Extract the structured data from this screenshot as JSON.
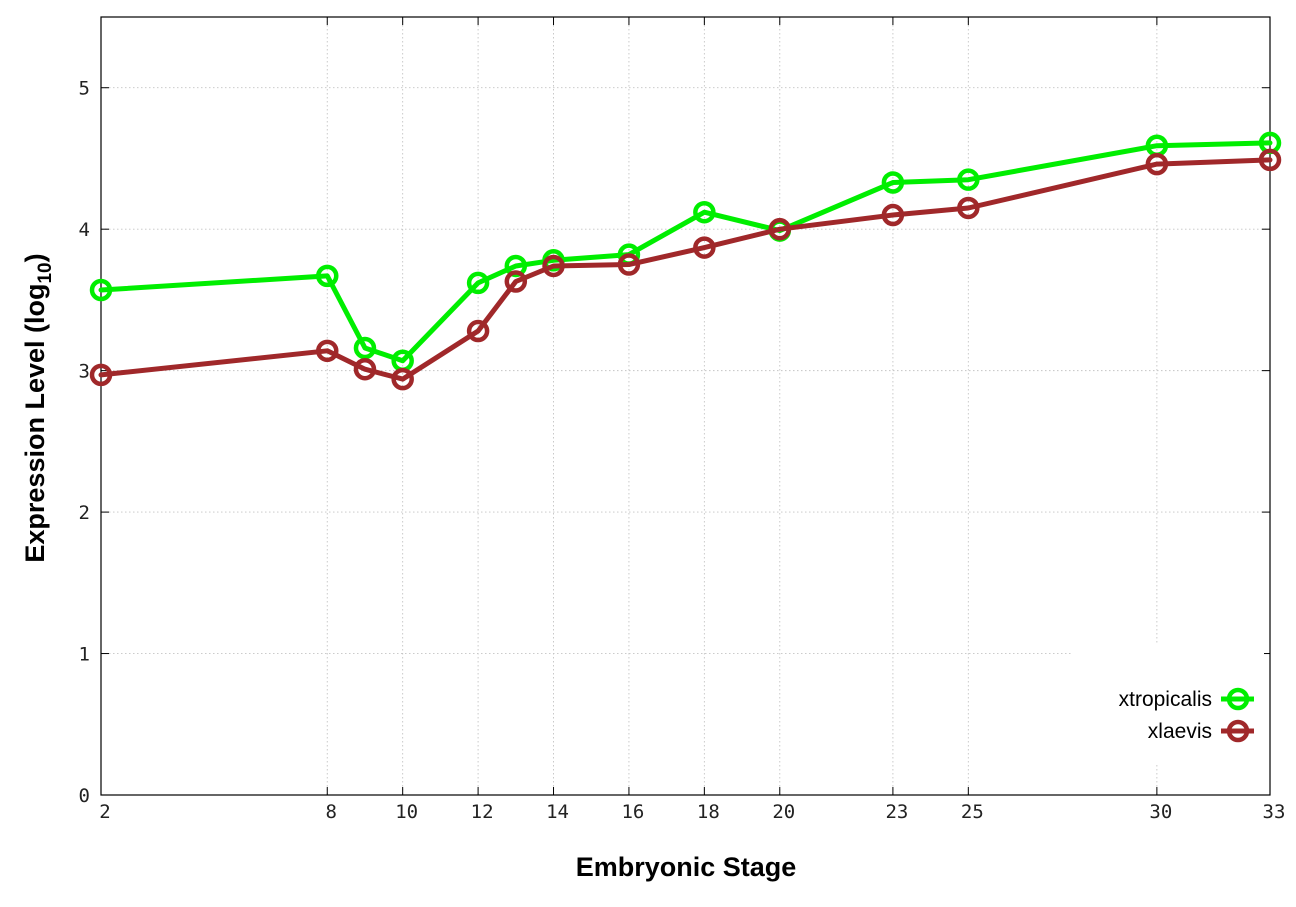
{
  "chart_data": {
    "type": "line",
    "xlabel": "Embryonic Stage",
    "ylabel": "Expression Level (log",
    "ylabel_subscript": "10",
    "ylabel_close": ")",
    "x": [
      2,
      8,
      9,
      10,
      12,
      13,
      14,
      16,
      18,
      20,
      23,
      25,
      30,
      33
    ],
    "xticks": [
      "2",
      "8",
      "10",
      "12",
      "14",
      "16",
      "18",
      "20",
      "23",
      "25",
      "30",
      "33"
    ],
    "xtick_values": [
      2,
      8,
      10,
      12,
      14,
      16,
      18,
      20,
      23,
      25,
      30,
      33
    ],
    "xlim": [
      2,
      33
    ],
    "yticks": [
      "0",
      "1",
      "2",
      "3",
      "4",
      "5"
    ],
    "ytick_values": [
      0,
      1,
      2,
      3,
      4,
      5
    ],
    "ylim": [
      0,
      5.5
    ],
    "grid": true,
    "legend_position": "bottom-right",
    "series": [
      {
        "name": "xtropicalis",
        "color": "#00ee00",
        "values": [
          3.57,
          3.67,
          3.16,
          3.07,
          3.62,
          3.74,
          3.78,
          3.82,
          4.12,
          3.99,
          4.33,
          4.35,
          4.59,
          4.61
        ]
      },
      {
        "name": "xlaevis",
        "color": "#a0282a",
        "values": [
          2.97,
          3.14,
          3.01,
          2.94,
          3.28,
          3.63,
          3.74,
          3.75,
          3.87,
          4.0,
          4.1,
          4.15,
          4.46,
          4.49
        ]
      }
    ]
  }
}
